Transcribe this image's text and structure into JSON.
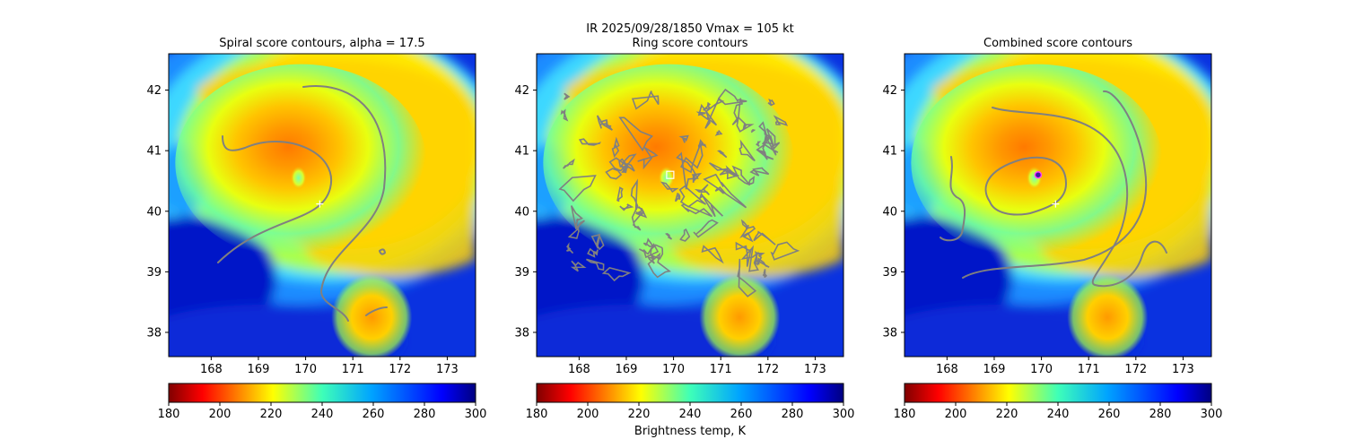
{
  "figure": {
    "suptitle_line1": "IR  2025/09/28/1850    Vmax = 105 kt",
    "colorbar_label": "Brightness temp, K"
  },
  "chart_data": [
    {
      "type": "heatmap",
      "title": "Spiral score contours, alpha = 17.5",
      "xlim": [
        167.1,
        173.6
      ],
      "ylim": [
        37.6,
        42.6
      ],
      "xticks": [
        168,
        169,
        170,
        171,
        172,
        173
      ],
      "yticks": [
        38,
        39,
        40,
        41,
        42
      ],
      "colorbar": {
        "min": 180,
        "max": 300,
        "ticks": [
          180,
          200,
          220,
          240,
          260,
          280,
          300
        ],
        "colormap": "jet_r"
      },
      "storm_center": {
        "lon": 169.85,
        "lat": 40.55
      },
      "marker": {
        "symbol": "plus",
        "lon": 170.3,
        "lat": 40.12
      }
    },
    {
      "type": "heatmap",
      "title": "Ring score contours",
      "xlim": [
        167.1,
        173.6
      ],
      "ylim": [
        37.6,
        42.6
      ],
      "xticks": [
        168,
        169,
        170,
        171,
        172,
        173
      ],
      "yticks": [
        38,
        39,
        40,
        41,
        42
      ],
      "colorbar": {
        "min": 180,
        "max": 300,
        "ticks": [
          180,
          200,
          220,
          240,
          260,
          280,
          300
        ],
        "colormap": "jet_r"
      },
      "storm_center": {
        "lon": 169.85,
        "lat": 40.55
      },
      "marker": {
        "symbol": "square",
        "lon": 169.93,
        "lat": 40.6
      }
    },
    {
      "type": "heatmap",
      "title": "Combined score contours",
      "xlim": [
        167.1,
        173.6
      ],
      "ylim": [
        37.6,
        42.6
      ],
      "xticks": [
        168,
        169,
        170,
        171,
        172,
        173
      ],
      "yticks": [
        38,
        39,
        40,
        41,
        42
      ],
      "colorbar": {
        "min": 180,
        "max": 300,
        "ticks": [
          180,
          200,
          220,
          240,
          260,
          280,
          300
        ],
        "colormap": "jet_r"
      },
      "storm_center": {
        "lon": 169.85,
        "lat": 40.55
      },
      "marker": {
        "symbol": "plus",
        "lon": 170.3,
        "lat": 40.12
      },
      "center_marker": {
        "symbol": "circle",
        "lon": 169.93,
        "lat": 40.6
      }
    }
  ]
}
